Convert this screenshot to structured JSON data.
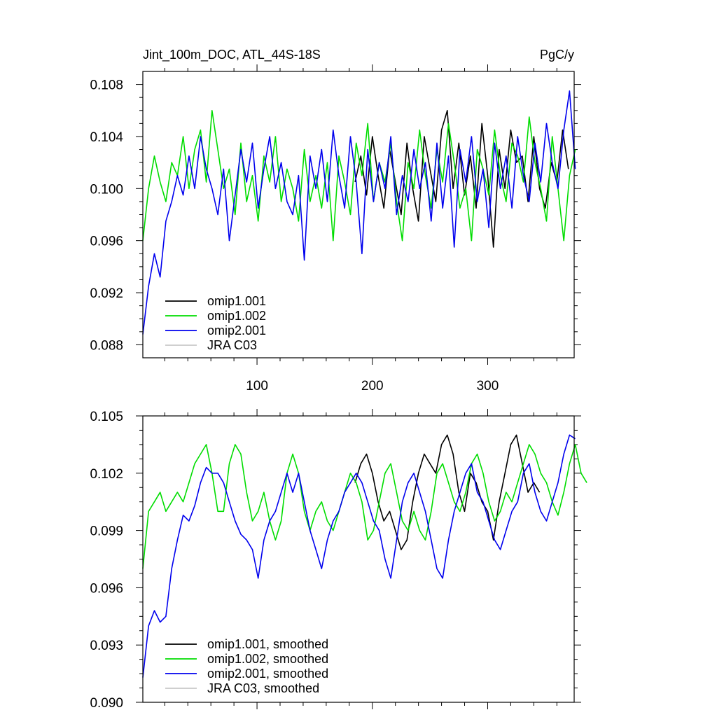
{
  "chart_data": [
    {
      "type": "line",
      "title": "Jint_100m_DOC, ATL_44S-18S",
      "units": "PgC/y",
      "xlim": [
        1,
        375
      ],
      "ylim": [
        0.087,
        0.109
      ],
      "x_ticks": [
        100,
        200,
        300
      ],
      "x_tick_labels": [
        "100",
        "200",
        "300"
      ],
      "y_ticks": [
        0.088,
        0.092,
        0.096,
        0.1,
        0.104,
        0.108
      ],
      "y_tick_labels": [
        "0.088",
        "0.092",
        "0.096",
        "0.100",
        "0.104",
        "0.108"
      ],
      "legend_position": "bottom-left",
      "series": [
        {
          "name": "omip1.001",
          "color": "#000000",
          "x_start": 185,
          "x_step": 5,
          "values": [
            0.1005,
            0.1025,
            0.0995,
            0.104,
            0.101,
            0.0985,
            0.103,
            0.1005,
            0.098,
            0.1035,
            0.1,
            0.0975,
            0.104,
            0.1015,
            0.099,
            0.1045,
            0.106,
            0.1,
            0.1035,
            0.0995,
            0.1025,
            0.0985,
            0.105,
            0.101,
            0.0955,
            0.103,
            0.1,
            0.1045,
            0.102,
            0.1025,
            0.099,
            0.104,
            0.1,
            0.0985,
            0.102,
            0.1005,
            0.1045,
            0.1015
          ]
        },
        {
          "name": "omip1.002",
          "color": "#00dd00",
          "x_start": 1,
          "x_step": 5,
          "values": [
            0.096,
            0.1,
            0.1025,
            0.1005,
            0.099,
            0.102,
            0.101,
            0.104,
            0.1,
            0.103,
            0.1045,
            0.1005,
            0.106,
            0.103,
            0.1,
            0.1015,
            0.098,
            0.1035,
            0.099,
            0.101,
            0.0975,
            0.1025,
            0.1005,
            0.104,
            0.099,
            0.1015,
            0.1,
            0.0975,
            0.103,
            0.099,
            0.101,
            0.0985,
            0.102,
            0.096,
            0.1025,
            0.1005,
            0.098,
            0.1035,
            0.101,
            0.105,
            0.099,
            0.102,
            0.1005,
            0.1035,
            0.099,
            0.096,
            0.102,
            0.1,
            0.1045,
            0.101,
            0.0985,
            0.103,
            0.1005,
            0.105,
            0.102,
            0.0985,
            0.1,
            0.096,
            0.103,
            0.1015,
            0.0995,
            0.1045,
            0.101,
            0.099,
            0.1035,
            0.1025,
            0.1005,
            0.1055,
            0.102,
            0.1,
            0.0975,
            0.104,
            0.1,
            0.096,
            0.101,
            0.103
          ]
        },
        {
          "name": "omip2.001",
          "color": "#0000ee",
          "x_start": 1,
          "x_step": 5,
          "values": [
            0.0888,
            0.0925,
            0.095,
            0.0932,
            0.0975,
            0.099,
            0.101,
            0.0995,
            0.1025,
            0.1,
            0.104,
            0.1015,
            0.1,
            0.098,
            0.1015,
            0.096,
            0.0995,
            0.103,
            0.1005,
            0.1035,
            0.0985,
            0.1015,
            0.104,
            0.1,
            0.102,
            0.099,
            0.098,
            0.101,
            0.0945,
            0.1025,
            0.1,
            0.103,
            0.099,
            0.1045,
            0.101,
            0.0985,
            0.104,
            0.1005,
            0.095,
            0.103,
            0.099,
            0.102,
            0.1,
            0.104,
            0.098,
            0.101,
            0.099,
            0.103,
            0.1,
            0.102,
            0.0975,
            0.1035,
            0.0985,
            0.1025,
            0.0955,
            0.103,
            0.1005,
            0.104,
            0.099,
            0.1015,
            0.097,
            0.1035,
            0.1,
            0.1025,
            0.0985,
            0.104,
            0.101,
            0.099,
            0.1035,
            0.1005,
            0.105,
            0.102,
            0.1,
            0.1045,
            0.1075,
            0.1015
          ]
        },
        {
          "name": "JRA C03",
          "color": "#c8c8c8",
          "values": []
        }
      ]
    },
    {
      "type": "line",
      "title": "",
      "xlim": [
        1,
        375
      ],
      "ylim": [
        0.09,
        0.105
      ],
      "x_ticks": [
        100,
        200,
        300
      ],
      "y_ticks": [
        0.09,
        0.093,
        0.096,
        0.099,
        0.102,
        0.105
      ],
      "y_tick_labels": [
        "0.090",
        "0.093",
        "0.096",
        "0.099",
        "0.102",
        "0.105"
      ],
      "legend_position": "bottom-left",
      "series": [
        {
          "name": "omip1.001, smoothed",
          "color": "#000000",
          "x_start": 185,
          "x_step": 5,
          "values": [
            0.1015,
            0.1025,
            0.103,
            0.102,
            0.1005,
            0.0995,
            0.1,
            0.099,
            0.098,
            0.0985,
            0.1005,
            0.102,
            0.103,
            0.1025,
            0.102,
            0.1035,
            0.104,
            0.103,
            0.101,
            0.1,
            0.102,
            0.1015,
            0.1005,
            0.1,
            0.0985,
            0.1005,
            0.102,
            0.1035,
            0.104,
            0.1025,
            0.101,
            0.1015,
            0.101
          ]
        },
        {
          "name": "omip1.002, smoothed",
          "color": "#00dd00",
          "x_start": 1,
          "x_step": 5,
          "values": [
            0.097,
            0.1,
            0.1005,
            0.101,
            0.1,
            0.1005,
            0.101,
            0.1005,
            0.1015,
            0.1025,
            0.103,
            0.1035,
            0.102,
            0.1,
            0.1,
            0.1025,
            0.1035,
            0.103,
            0.101,
            0.0995,
            0.1,
            0.101,
            0.0995,
            0.0985,
            0.0995,
            0.102,
            0.103,
            0.102,
            0.1,
            0.099,
            0.1,
            0.1005,
            0.0995,
            0.099,
            0.1,
            0.101,
            0.102,
            0.1015,
            0.1005,
            0.0985,
            0.099,
            0.1005,
            0.102,
            0.1025,
            0.101,
            0.0995,
            0.099,
            0.1,
            0.099,
            0.0985,
            0.1,
            0.102,
            0.1025,
            0.1015,
            0.1005,
            0.1,
            0.101,
            0.1025,
            0.103,
            0.102,
            0.1005,
            0.0995,
            0.1,
            0.101,
            0.1005,
            0.1015,
            0.1025,
            0.1035,
            0.103,
            0.102,
            0.1015,
            0.1005,
            0.0998,
            0.101,
            0.1025,
            0.1035,
            0.102,
            0.1015
          ]
        },
        {
          "name": "omip2.001, smoothed",
          "color": "#0000ee",
          "x_start": 1,
          "x_step": 5,
          "values": [
            0.0913,
            0.094,
            0.0948,
            0.0942,
            0.0945,
            0.097,
            0.0985,
            0.0998,
            0.0995,
            0.1003,
            0.1015,
            0.1023,
            0.102,
            0.102,
            0.1015,
            0.1005,
            0.0995,
            0.0988,
            0.0985,
            0.098,
            0.0965,
            0.0985,
            0.0995,
            0.1,
            0.101,
            0.102,
            0.101,
            0.102,
            0.1005,
            0.099,
            0.098,
            0.097,
            0.0985,
            0.0995,
            0.1,
            0.101,
            0.1015,
            0.102,
            0.1015,
            0.1005,
            0.0995,
            0.099,
            0.0975,
            0.0965,
            0.0985,
            0.1005,
            0.1015,
            0.102,
            0.101,
            0.1,
            0.0985,
            0.097,
            0.0965,
            0.0985,
            0.1,
            0.101,
            0.102,
            0.1025,
            0.101,
            0.1005,
            0.0995,
            0.0985,
            0.098,
            0.099,
            0.1,
            0.1005,
            0.102,
            0.1025,
            0.101,
            0.1,
            0.0995,
            0.1005,
            0.1015,
            0.103,
            0.104,
            0.1038
          ]
        },
        {
          "name": "JRA C03, smoothed",
          "color": "#c8c8c8",
          "values": []
        }
      ]
    }
  ]
}
